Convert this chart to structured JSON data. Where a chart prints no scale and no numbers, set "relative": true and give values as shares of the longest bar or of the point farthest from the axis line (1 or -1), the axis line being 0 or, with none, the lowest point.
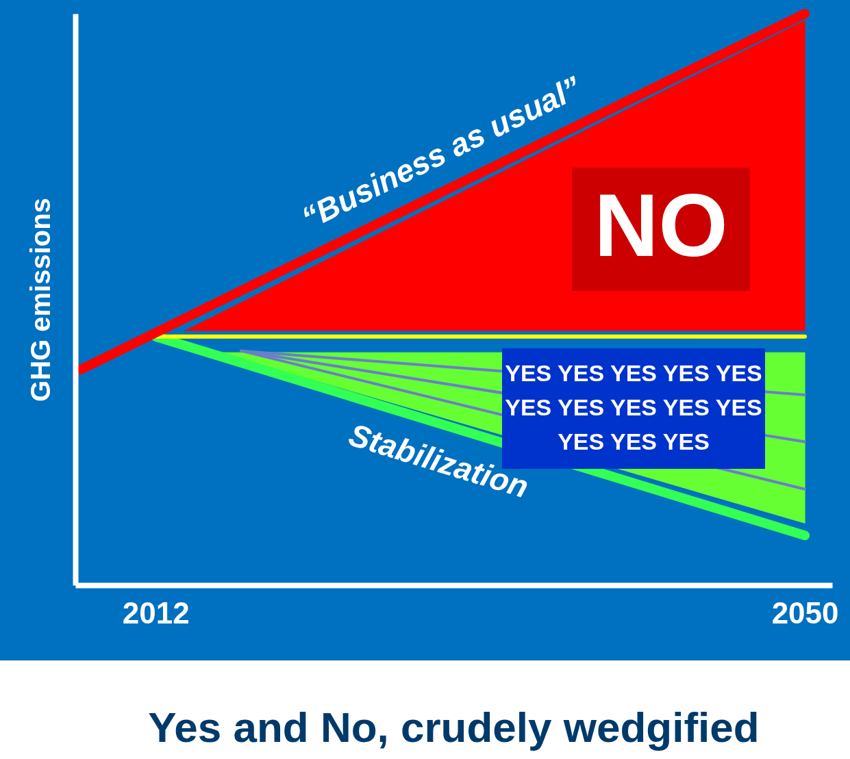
{
  "chart_data": {
    "type": "line",
    "title": "Yes and No, crudely wedgified",
    "ylabel": "GHG emissions",
    "relative": true,
    "xlim": [
      2007.3,
      2051.6
    ],
    "xticks": [
      2012,
      2050
    ],
    "series": [
      {
        "type": "area",
        "color": "#ff0000",
        "x": [
          2013.7,
          2050,
          2050
        ],
        "values": [
          0.445,
          0.988,
          0.445
        ]
      },
      {
        "type": "area",
        "color": "#66ff33",
        "x": [
          2015.7,
          2050,
          2050
        ],
        "values": [
          0.407,
          0.407,
          0.108
        ]
      },
      {
        "type": "line",
        "color": "#6a7fc8",
        "x": [
          2017,
          2050
        ],
        "values": [
          0.41,
          0.333
        ]
      },
      {
        "type": "line",
        "color": "#6a7fc8",
        "x": [
          2017,
          2050
        ],
        "values": [
          0.41,
          0.251
        ]
      },
      {
        "type": "line",
        "color": "#6a7fc8",
        "x": [
          2017,
          2050
        ],
        "values": [
          0.41,
          0.168
        ]
      },
      {
        "type": "line",
        "color": "#33ff55",
        "x": [
          2012,
          2050
        ],
        "values": [
          0.435,
          0.087
        ]
      },
      {
        "type": "line",
        "color": "#ffff00",
        "x": [
          2012,
          2050
        ],
        "values": [
          0.435,
          0.435
        ]
      },
      {
        "type": "line",
        "color": "#ff0000",
        "x": [
          2007.6,
          2050
        ],
        "values": [
          0.377,
          1.0
        ]
      }
    ],
    "annotations": [
      "“Business as usual”",
      "NO",
      "Stabilization",
      "YES YES YES YES YES\nYES YES YES YES YES\nYES YES YES"
    ]
  }
}
